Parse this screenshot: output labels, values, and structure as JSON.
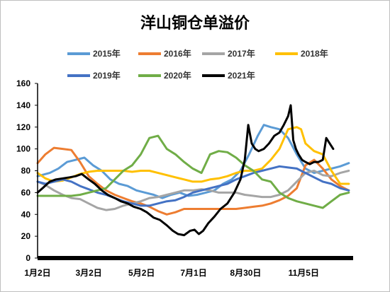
{
  "chart_data": {
    "type": "line",
    "title": "洋山铜仓单溢价",
    "xlabel": "",
    "ylabel": "",
    "x_tick_labels": [
      "1月2日",
      "3月2日",
      "5月2日",
      "7月1日",
      "8月30日",
      "11月5日"
    ],
    "x_tick_day_of_year": [
      1,
      60,
      121,
      181,
      241,
      308
    ],
    "xlim_day_of_year": [
      1,
      365
    ],
    "ylim": [
      0,
      160
    ],
    "y_ticks": [
      0,
      20,
      40,
      60,
      80,
      100,
      120,
      140,
      160
    ],
    "grid": false,
    "legend_position": "top",
    "series": [
      {
        "name": "2015年",
        "color": "#5b9bd5",
        "x": [
          1,
          15,
          25,
          35,
          45,
          55,
          65,
          75,
          85,
          95,
          105,
          115,
          125,
          135,
          145,
          155,
          165,
          175,
          185,
          195,
          205,
          215,
          225,
          235,
          245,
          255,
          262,
          270,
          280,
          290,
          300,
          310,
          320,
          330,
          340,
          350,
          360
        ],
        "y": [
          75,
          78,
          82,
          88,
          90,
          92,
          85,
          80,
          72,
          68,
          66,
          62,
          60,
          58,
          55,
          58,
          60,
          57,
          58,
          60,
          62,
          68,
          72,
          80,
          95,
          112,
          122,
          120,
          118,
          110,
          95,
          82,
          78,
          80,
          82,
          84,
          87
        ]
      },
      {
        "name": "2016年",
        "color": "#ed7d31",
        "x": [
          1,
          10,
          20,
          30,
          40,
          50,
          60,
          70,
          80,
          90,
          100,
          110,
          120,
          130,
          140,
          150,
          160,
          170,
          180,
          190,
          200,
          210,
          220,
          230,
          240,
          250,
          260,
          270,
          280,
          290,
          300,
          310,
          320,
          330,
          340,
          350,
          360
        ],
        "y": [
          87,
          95,
          101,
          100,
          99,
          88,
          75,
          68,
          62,
          58,
          55,
          52,
          50,
          47,
          43,
          40,
          42,
          45,
          45,
          45,
          45,
          45,
          45,
          45,
          46,
          47,
          48,
          50,
          53,
          57,
          64,
          85,
          90,
          82,
          72,
          66,
          62
        ]
      },
      {
        "name": "2017年",
        "color": "#a5a5a5",
        "x": [
          1,
          10,
          20,
          30,
          40,
          50,
          60,
          70,
          80,
          90,
          100,
          110,
          120,
          130,
          140,
          150,
          160,
          170,
          180,
          190,
          200,
          210,
          220,
          230,
          240,
          250,
          260,
          270,
          280,
          290,
          300,
          310,
          320,
          330,
          340,
          350,
          360
        ],
        "y": [
          70,
          67,
          62,
          58,
          55,
          54,
          50,
          46,
          44,
          45,
          48,
          50,
          52,
          55,
          56,
          58,
          60,
          62,
          62,
          63,
          62,
          60,
          60,
          60,
          58,
          57,
          56,
          56,
          58,
          62,
          70,
          78,
          80,
          76,
          75,
          78,
          80
        ]
      },
      {
        "name": "2018年",
        "color": "#ffc000",
        "x": [
          1,
          10,
          20,
          30,
          40,
          50,
          60,
          70,
          80,
          90,
          100,
          110,
          120,
          130,
          140,
          150,
          160,
          170,
          180,
          190,
          200,
          210,
          220,
          230,
          240,
          250,
          260,
          270,
          280,
          290,
          300,
          305,
          310,
          320,
          330,
          340,
          350,
          360
        ],
        "y": [
          78,
          73,
          70,
          71,
          74,
          77,
          79,
          80,
          80,
          80,
          80,
          79,
          80,
          80,
          78,
          76,
          74,
          72,
          70,
          70,
          72,
          73,
          75,
          78,
          80,
          80,
          82,
          90,
          100,
          118,
          120,
          118,
          105,
          98,
          95,
          80,
          68,
          68
        ]
      },
      {
        "name": "2019年",
        "color": "#4472c4",
        "x": [
          1,
          10,
          20,
          30,
          40,
          50,
          60,
          70,
          80,
          90,
          100,
          110,
          120,
          130,
          140,
          150,
          160,
          170,
          180,
          190,
          200,
          210,
          220,
          230,
          240,
          250,
          260,
          270,
          280,
          290,
          300,
          310,
          320,
          330,
          340,
          350,
          360
        ],
        "y": [
          70,
          68,
          70,
          72,
          70,
          66,
          63,
          60,
          58,
          55,
          52,
          50,
          48,
          48,
          50,
          52,
          53,
          56,
          60,
          62,
          64,
          66,
          68,
          72,
          75,
          78,
          80,
          82,
          84,
          83,
          82,
          78,
          74,
          70,
          68,
          64,
          62
        ]
      },
      {
        "name": "2020年",
        "color": "#70ad47",
        "x": [
          1,
          10,
          20,
          30,
          40,
          50,
          60,
          70,
          80,
          90,
          100,
          110,
          120,
          130,
          140,
          150,
          160,
          170,
          180,
          190,
          200,
          210,
          220,
          230,
          240,
          250,
          260,
          270,
          280,
          290,
          300,
          310,
          320,
          330,
          340,
          350,
          360
        ],
        "y": [
          57,
          57,
          57,
          57,
          57,
          58,
          60,
          62,
          64,
          72,
          80,
          85,
          95,
          110,
          112,
          100,
          95,
          88,
          82,
          78,
          95,
          98,
          97,
          92,
          85,
          80,
          72,
          70,
          60,
          55,
          52,
          50,
          48,
          46,
          52,
          58,
          60
        ]
      },
      {
        "name": "2021年",
        "color": "#000000",
        "x": [
          1,
          8,
          15,
          22,
          30,
          38,
          45,
          52,
          60,
          67,
          75,
          82,
          90,
          97,
          105,
          112,
          120,
          127,
          135,
          142,
          150,
          157,
          163,
          170,
          177,
          182,
          187,
          192,
          198,
          205,
          212,
          220,
          228,
          235,
          240,
          244,
          248,
          252,
          256,
          262,
          268,
          274,
          280,
          285,
          290,
          293,
          296,
          299,
          302,
          306,
          310,
          315,
          320,
          325,
          330,
          334,
          338,
          342
        ],
        "y": [
          60,
          65,
          70,
          72,
          73,
          74,
          75,
          77,
          72,
          68,
          62,
          58,
          55,
          52,
          50,
          47,
          45,
          42,
          37,
          35,
          30,
          25,
          22,
          21,
          25,
          26,
          22,
          25,
          32,
          38,
          45,
          50,
          60,
          72,
          90,
          122,
          105,
          100,
          98,
          100,
          105,
          112,
          115,
          122,
          130,
          140,
          108,
          100,
          95,
          90,
          88,
          86,
          88,
          88,
          90,
          110,
          105,
          100
        ]
      }
    ]
  }
}
